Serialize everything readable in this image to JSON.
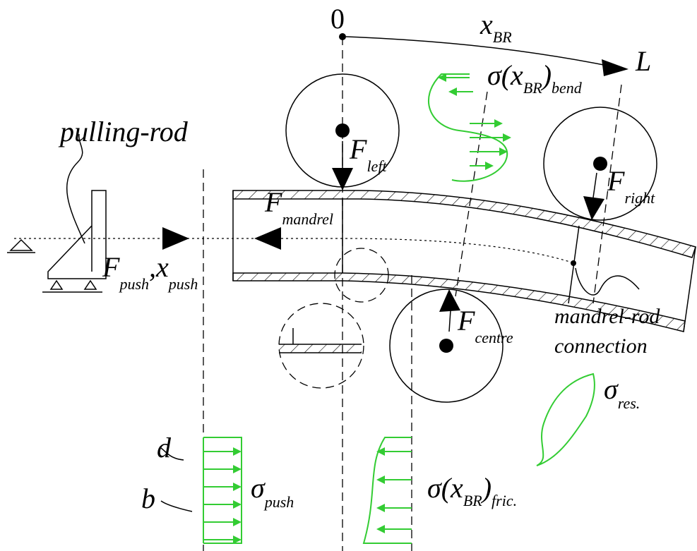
{
  "origin": "0",
  "end": "L",
  "x_br": {
    "main": "x",
    "sub": "BR"
  },
  "sigma_bend": {
    "main": "σ(x",
    "sub": "BR",
    "close": ")",
    "sub2": "bend"
  },
  "pulling_rod": "pulling-rod",
  "f_left": {
    "main": "F",
    "sub": "left"
  },
  "f_right": {
    "main": "F",
    "sub": "right"
  },
  "f_mandrel": {
    "main": "F",
    "sub": "mandrel"
  },
  "f_push": {
    "main": "F",
    "sub": "push",
    "main2": ",x",
    "sub2": "push"
  },
  "f_centre": {
    "main": "F",
    "sub": "centre"
  },
  "connection": {
    "line1": "mandrel-rod",
    "line2": "connection"
  },
  "sigma_res": {
    "main": "σ",
    "sub": "res."
  },
  "d": "d",
  "b": "b",
  "sigma_push": {
    "main": "σ",
    "sub": "push"
  },
  "sigma_fric": {
    "main": "σ(x",
    "sub": "BR",
    "close": ")",
    "sub2": "fric."
  }
}
